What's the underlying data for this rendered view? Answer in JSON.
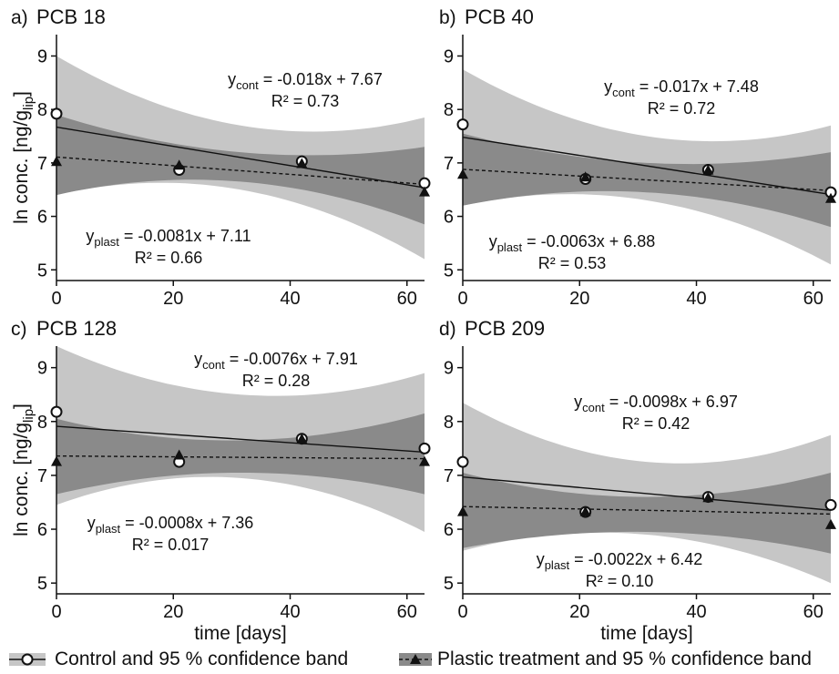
{
  "chart_data": [
    {
      "type": "line",
      "panel_label": "a)",
      "title": "PCB 18",
      "xlabel": "",
      "ylabel": "ln conc. [ng/g",
      "ylabel_sub": "lip",
      "ylabel_close": "]",
      "xlim": [
        0,
        63
      ],
      "ylim": [
        4.8,
        9.4
      ],
      "x_ticks": [
        0,
        20,
        40,
        60
      ],
      "y_ticks": [
        5,
        6,
        7,
        8,
        9
      ],
      "x": [
        0,
        21,
        42,
        63
      ],
      "series": [
        {
          "values": [
            7.92,
            6.87,
            7.03,
            6.62
          ],
          "fit": {
            "slope": -0.018,
            "intercept": 7.67
          },
          "band": {
            "at_0": [
              6.4,
              9.0
            ],
            "at_mid": [
              6.5,
              7.7
            ],
            "at_63": [
              5.2,
              7.85
            ]
          },
          "eq_prefix": "y",
          "eq_sub": "cont",
          "eq_rhs": "= -0.018x + 7.67",
          "r2": "R² = 0.73"
        },
        {
          "values": [
            7.02,
            6.95,
            6.98,
            6.45
          ],
          "fit": {
            "slope": -0.0081,
            "intercept": 7.11
          },
          "band": {
            "at_0": [
              6.4,
              7.9
            ],
            "at_mid": [
              6.65,
              7.2
            ],
            "at_63": [
              5.85,
              7.3
            ]
          },
          "eq_prefix": "y",
          "eq_sub": "plast",
          "eq_rhs": "= -0.0081x + 7.11",
          "r2": "R² = 0.66"
        }
      ]
    },
    {
      "type": "line",
      "panel_label": "b)",
      "title": "PCB 40",
      "xlabel": "",
      "ylabel": "",
      "xlim": [
        0,
        63
      ],
      "ylim": [
        4.8,
        9.4
      ],
      "x_ticks": [
        0,
        20,
        40,
        60
      ],
      "y_ticks": [
        5,
        6,
        7,
        8,
        9
      ],
      "x": [
        0,
        21,
        42,
        63
      ],
      "series": [
        {
          "values": [
            7.72,
            6.7,
            6.87,
            6.45
          ],
          "fit": {
            "slope": -0.017,
            "intercept": 7.48
          },
          "band": {
            "at_0": [
              6.2,
              8.75
            ],
            "at_mid": [
              6.3,
              7.5
            ],
            "at_63": [
              5.1,
              7.7
            ]
          },
          "eq_prefix": "y",
          "eq_sub": "cont",
          "eq_rhs": "= -0.017x + 7.48",
          "r2": "R² = 0.72"
        },
        {
          "values": [
            6.78,
            6.73,
            6.86,
            6.33
          ],
          "fit": {
            "slope": -0.0063,
            "intercept": 6.88
          },
          "band": {
            "at_0": [
              6.2,
              7.55
            ],
            "at_mid": [
              6.45,
              7.0
            ],
            "at_63": [
              5.8,
              7.2
            ]
          },
          "eq_prefix": "y",
          "eq_sub": "plast",
          "eq_rhs": "= -0.0063x + 6.88",
          "r2": "R² = 0.53"
        }
      ]
    },
    {
      "type": "line",
      "panel_label": "c)",
      "title": "PCB 128",
      "xlabel": "time [days]",
      "ylabel": "ln conc. [ng/g",
      "ylabel_sub": "lip",
      "ylabel_close": "]",
      "xlim": [
        0,
        63
      ],
      "ylim": [
        4.8,
        9.4
      ],
      "x_ticks": [
        0,
        20,
        40,
        60
      ],
      "y_ticks": [
        5,
        6,
        7,
        8,
        9
      ],
      "x": [
        0,
        21,
        42,
        63
      ],
      "series": [
        {
          "values": [
            8.18,
            7.25,
            7.68,
            7.5
          ],
          "fit": {
            "slope": -0.0076,
            "intercept": 7.91
          },
          "band": {
            "at_0": [
              6.45,
              9.4
            ],
            "at_mid": [
              6.95,
              8.5
            ],
            "at_63": [
              5.95,
              8.9
            ]
          },
          "eq_prefix": "y",
          "eq_sub": "cont",
          "eq_rhs": "= -0.0076x + 7.91",
          "r2": "R² = 0.28"
        },
        {
          "values": [
            7.25,
            7.37,
            7.67,
            7.25
          ],
          "fit": {
            "slope": -0.0008,
            "intercept": 7.36
          },
          "band": {
            "at_0": [
              6.65,
              8.05
            ],
            "at_mid": [
              7.05,
              7.65
            ],
            "at_63": [
              6.65,
              8.15
            ]
          },
          "eq_prefix": "y",
          "eq_sub": "plast",
          "eq_rhs": "= -0.0008x + 7.36",
          "r2": "R² = 0.017"
        }
      ]
    },
    {
      "type": "line",
      "panel_label": "d)",
      "title": "PCB 209",
      "xlabel": "time [days]",
      "ylabel": "",
      "xlim": [
        0,
        63
      ],
      "ylim": [
        4.8,
        9.4
      ],
      "x_ticks": [
        0,
        20,
        40,
        60
      ],
      "y_ticks": [
        5,
        6,
        7,
        8,
        9
      ],
      "x": [
        0,
        21,
        42,
        63
      ],
      "series": [
        {
          "values": [
            7.25,
            6.32,
            6.6,
            6.45
          ],
          "fit": {
            "slope": -0.0098,
            "intercept": 6.97
          },
          "band": {
            "at_0": [
              5.6,
              8.35
            ],
            "at_mid": [
              5.9,
              7.25
            ],
            "at_63": [
              5.0,
              7.75
            ]
          },
          "eq_prefix": "y",
          "eq_sub": "cont",
          "eq_rhs": "= -0.0098x + 6.97",
          "r2": "R² = 0.42"
        },
        {
          "values": [
            6.32,
            6.32,
            6.58,
            6.08
          ],
          "fit": {
            "slope": -0.0022,
            "intercept": 6.42
          },
          "band": {
            "at_0": [
              5.65,
              7.05
            ],
            "at_mid": [
              5.95,
              6.6
            ],
            "at_63": [
              5.55,
              7.05
            ]
          },
          "eq_prefix": "y",
          "eq_sub": "plast",
          "eq_rhs": "= -0.0022x + 6.42",
          "r2": "R² = 0.10"
        }
      ]
    }
  ],
  "legend": {
    "control": "Control and 95 % confidence band",
    "plastic": "Plastic treatment and 95 % confidence band"
  },
  "colors": {
    "outer_band": "#c6c6c6",
    "inner_band": "#8a8a8a",
    "line": "#111111",
    "background": "#ffffff"
  },
  "icons": {
    "control_marker": "open-circle",
    "plastic_marker": "filled-triangle"
  }
}
